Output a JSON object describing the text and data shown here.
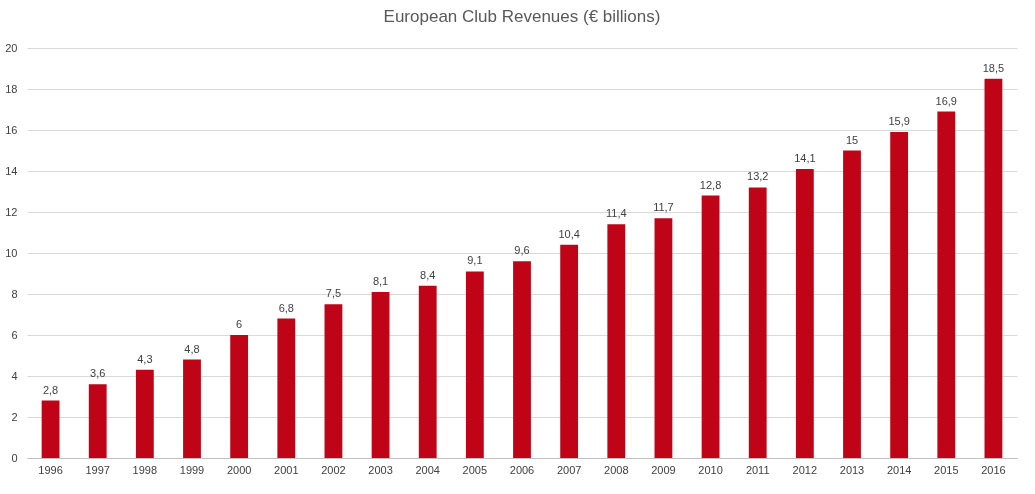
{
  "chart_data": {
    "type": "bar",
    "title": "European Club Revenues (€ billions)",
    "categories": [
      "1996",
      "1997",
      "1998",
      "1999",
      "2000",
      "2001",
      "2002",
      "2003",
      "2004",
      "2005",
      "2006",
      "2007",
      "2008",
      "2009",
      "2010",
      "2011",
      "2012",
      "2013",
      "2014",
      "2015",
      "2016"
    ],
    "values": [
      2.8,
      3.6,
      4.3,
      4.8,
      6,
      6.8,
      7.5,
      8.1,
      8.4,
      9.1,
      9.6,
      10.4,
      11.4,
      11.7,
      12.8,
      13.2,
      14.1,
      15,
      15.9,
      16.9,
      18.5
    ],
    "value_labels": [
      "2,8",
      "3,6",
      "4,3",
      "4,8",
      "6",
      "6,8",
      "7,5",
      "8,1",
      "8,4",
      "9,1",
      "9,6",
      "10,4",
      "11,4",
      "11,7",
      "12,8",
      "13,2",
      "14,1",
      "15",
      "15,9",
      "16,9",
      "18,5"
    ],
    "color": "#c00418",
    "ylim": [
      0,
      20
    ],
    "yticks": [
      0,
      2,
      4,
      6,
      8,
      10,
      12,
      14,
      16,
      18,
      20
    ],
    "grid": "y"
  }
}
